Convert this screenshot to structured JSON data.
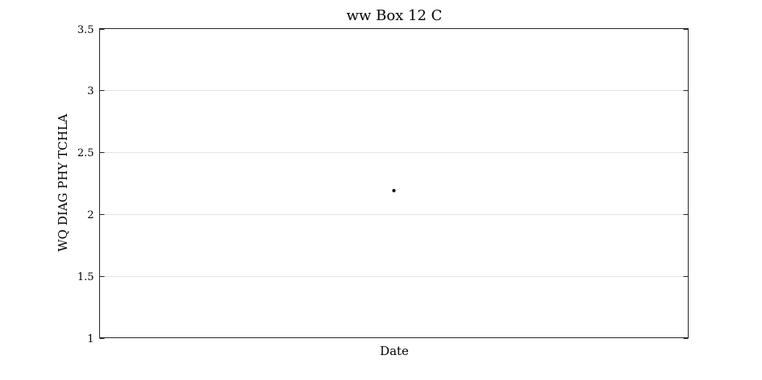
{
  "chart_data": {
    "type": "scatter",
    "title": "ww Box 12 C",
    "xlabel": "Date",
    "ylabel": "WQ DIAG PHY TCHLA",
    "ylim": [
      1,
      3.5
    ],
    "yticks": [
      1,
      1.5,
      2,
      2.5,
      3,
      3.5
    ],
    "ytick_labels": [
      "1",
      "1.5",
      "2",
      "2.5",
      "3",
      "3.5"
    ],
    "xticks": [],
    "grid": "horizontal",
    "legend": "none",
    "series": [
      {
        "points": [
          {
            "x": "",
            "y": 2.19
          }
        ],
        "color": "#000000",
        "marker": "dot"
      }
    ],
    "colors": {
      "grid": "#e3e3e3",
      "axes": "#262626",
      "marker": "#000000"
    }
  }
}
